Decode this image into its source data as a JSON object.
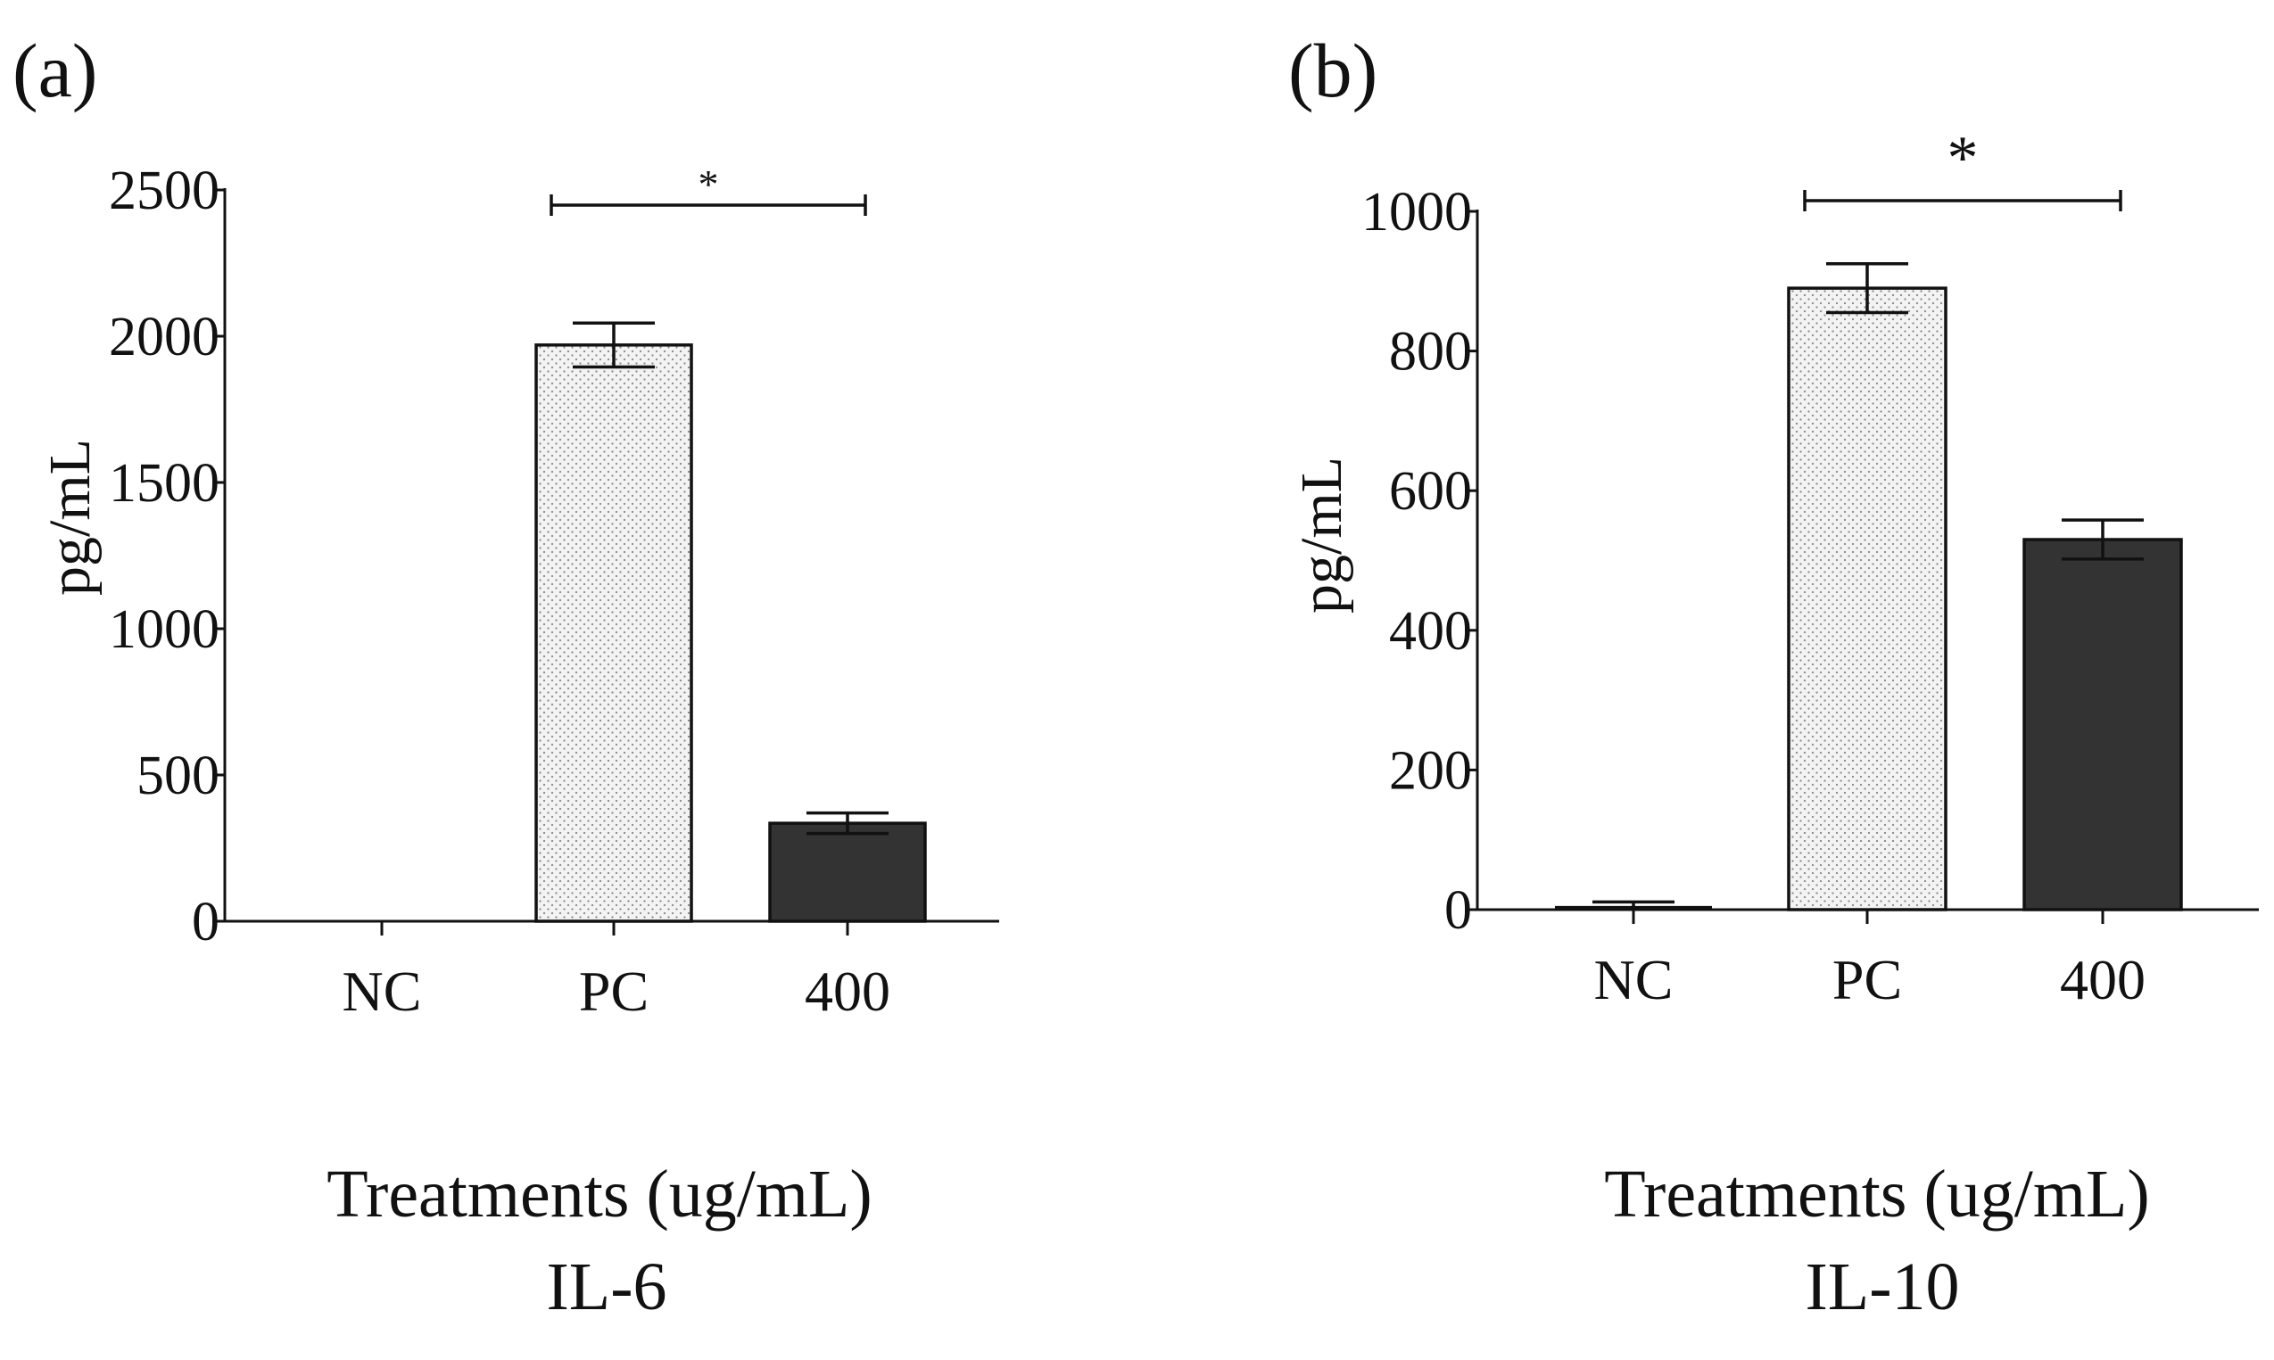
{
  "chart_data": [
    {
      "type": "bar",
      "panel_label": "(a)",
      "title": "IL-6",
      "xlabel": "Treatments (ug/mL)",
      "ylabel": "pg/mL",
      "categories": [
        "NC",
        "PC",
        "400"
      ],
      "values": [
        0,
        1970,
        335
      ],
      "errors": [
        0,
        75,
        35
      ],
      "fills": [
        "none",
        "dotted-light",
        "#333333"
      ],
      "ylim": [
        0,
        2500
      ],
      "yticks": [
        "0",
        "500",
        "1000",
        "1500",
        "2000",
        "2500"
      ],
      "significance": {
        "from": "PC",
        "to": "400",
        "label": "*"
      },
      "grid": false
    },
    {
      "type": "bar",
      "panel_label": "(b)",
      "title": "IL-10",
      "xlabel": "Treatments (ug/mL)",
      "ylabel": "pg/mL",
      "categories": [
        "NC",
        "PC",
        "400"
      ],
      "values": [
        3,
        890,
        530
      ],
      "errors": [
        8,
        35,
        28
      ],
      "fills": [
        "none",
        "dotted-light",
        "#333333"
      ],
      "ylim": [
        0,
        1000
      ],
      "yticks": [
        "0",
        "200",
        "400",
        "600",
        "800",
        "1000"
      ],
      "significance": {
        "from": "PC",
        "to": "400",
        "label": "*"
      },
      "grid": false
    }
  ]
}
